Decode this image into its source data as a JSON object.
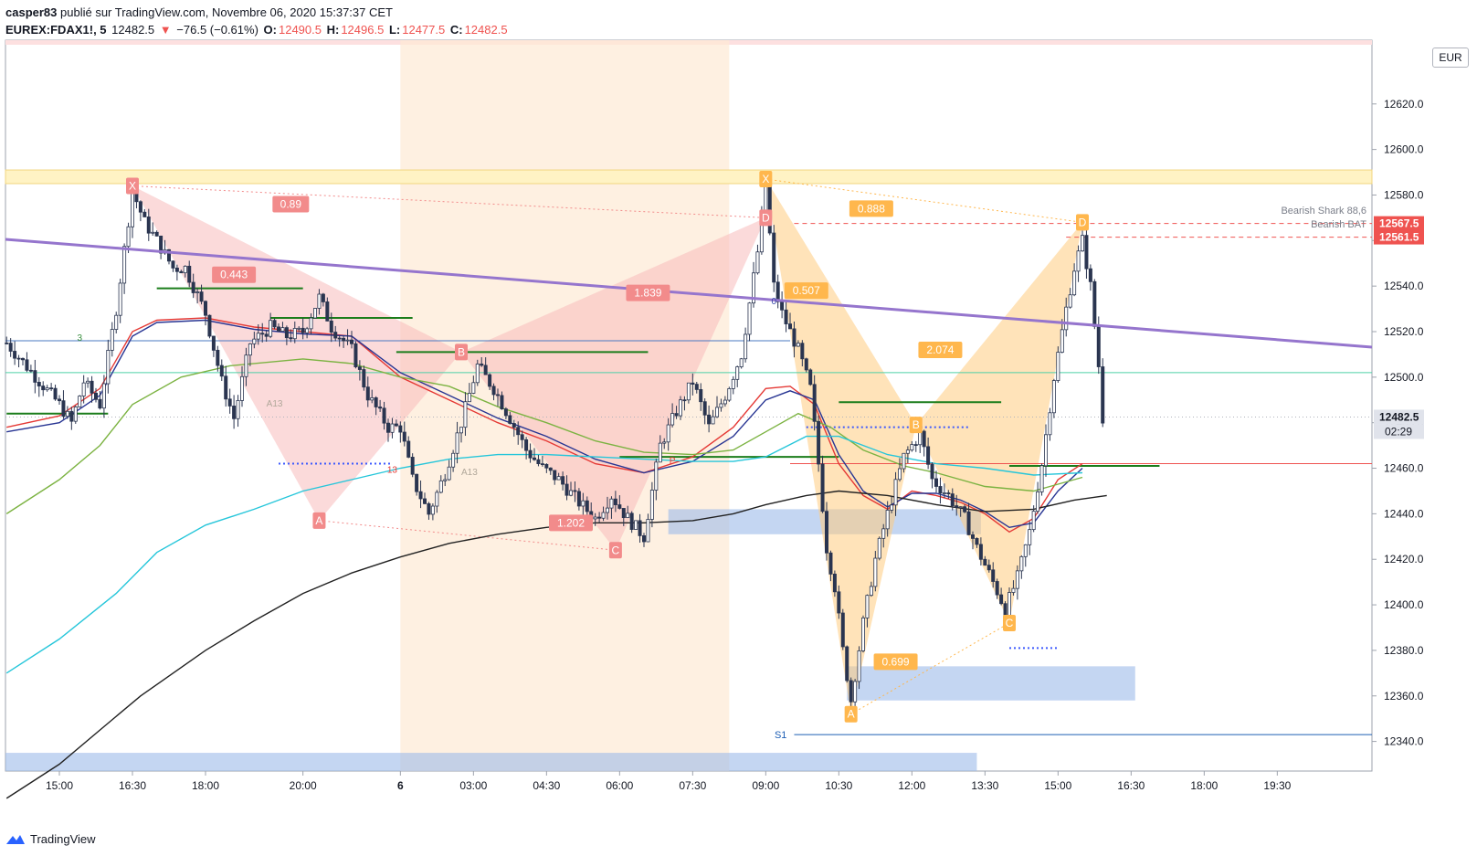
{
  "header": {
    "user": "casper83",
    "published": "publié sur TradingView.com, Novembre 06, 2020 15:37:37 CET",
    "symbol": "EUREX:FDAX1!, 5",
    "last": "12482.5",
    "change": "−76.5 (−0.61%)",
    "o_label": "O:",
    "o": "12490.5",
    "h_label": "H:",
    "h": "12496.5",
    "l_label": "L:",
    "l": "12477.5",
    "c_label": "C:",
    "c": "12482.5"
  },
  "footer": {
    "brand": "TradingView"
  },
  "currency": "EUR",
  "colors": {
    "up": "#26a69a",
    "down": "#ef5350",
    "trend": "#9575cd",
    "pattern_red": "#f8bbbb",
    "pattern_orange": "#ffcc80",
    "zone_blue": "#9cbbea",
    "zone_yellow": "#fff3c4",
    "session": "#fde9d4"
  },
  "chart_data": {
    "type": "line",
    "title": "",
    "xlabel": "",
    "ylabel": "",
    "x_ticks": [
      "15:00",
      "16:30",
      "18:00",
      "20:00",
      "6",
      "03:00",
      "04:30",
      "06:00",
      "07:30",
      "09:00",
      "10:30",
      "12:00",
      "13:30",
      "15:00",
      "16:30",
      "18:00",
      "19:30"
    ],
    "x_tick_index": [
      0,
      18,
      36,
      60,
      84,
      102,
      120,
      138,
      156,
      174,
      192,
      210,
      228,
      246,
      264,
      282,
      300
    ],
    "y_ticks": [
      12340.0,
      12360.0,
      12380.0,
      12400.0,
      12420.0,
      12440.0,
      12460.0,
      12480.0,
      12500.0,
      12520.0,
      12540.0,
      12560.0,
      12580.0,
      12600.0,
      12620.0
    ],
    "y_tick_labels": [
      "12340.0",
      "12360.0",
      "12380.0",
      "12400.0",
      "12420.0",
      "12440.0",
      "12460.0",
      "12480.0",
      "12500.0",
      "12520.0",
      "12540.0",
      "12560.0",
      "12580.0",
      "12600.0",
      "12620.0"
    ],
    "ylim": [
      12327,
      12648
    ],
    "x_range": [
      -13,
      320
    ],
    "price_path": [
      [
        -13,
        12515
      ],
      [
        0,
        12488
      ],
      [
        3,
        12480
      ],
      [
        6,
        12498
      ],
      [
        10,
        12488
      ],
      [
        14,
        12530
      ],
      [
        18,
        12582
      ],
      [
        21,
        12568
      ],
      [
        24,
        12560
      ],
      [
        28,
        12548
      ],
      [
        31,
        12548
      ],
      [
        36,
        12528
      ],
      [
        40,
        12498
      ],
      [
        43,
        12482
      ],
      [
        47,
        12515
      ],
      [
        52,
        12522
      ],
      [
        56,
        12518
      ],
      [
        60,
        12520
      ],
      [
        64,
        12535
      ],
      [
        67,
        12522
      ],
      [
        72,
        12512
      ],
      [
        76,
        12492
      ],
      [
        81,
        12478
      ],
      [
        84,
        12478
      ],
      [
        87,
        12455
      ],
      [
        91,
        12440
      ],
      [
        95,
        12458
      ],
      [
        99,
        12480
      ],
      [
        103,
        12505
      ],
      [
        107,
        12495
      ],
      [
        111,
        12482
      ],
      [
        115,
        12468
      ],
      [
        119,
        12460
      ],
      [
        123,
        12455
      ],
      [
        128,
        12445
      ],
      [
        132,
        12438
      ],
      [
        136,
        12448
      ],
      [
        140,
        12438
      ],
      [
        144,
        12430
      ],
      [
        148,
        12470
      ],
      [
        152,
        12485
      ],
      [
        156,
        12498
      ],
      [
        160,
        12478
      ],
      [
        164,
        12492
      ],
      [
        168,
        12510
      ],
      [
        172,
        12555
      ],
      [
        174,
        12585
      ],
      [
        176,
        12540
      ],
      [
        178,
        12528
      ],
      [
        182,
        12512
      ],
      [
        185,
        12495
      ],
      [
        187,
        12462
      ],
      [
        189,
        12425
      ],
      [
        191,
        12408
      ],
      [
        193,
        12380
      ],
      [
        195,
        12358
      ],
      [
        198,
        12392
      ],
      [
        201,
        12420
      ],
      [
        204,
        12440
      ],
      [
        208,
        12465
      ],
      [
        212,
        12475
      ],
      [
        215,
        12455
      ],
      [
        219,
        12448
      ],
      [
        223,
        12438
      ],
      [
        226,
        12425
      ],
      [
        230,
        12410
      ],
      [
        233,
        12398
      ],
      [
        236,
        12412
      ],
      [
        239,
        12432
      ],
      [
        242,
        12462
      ],
      [
        245,
        12500
      ],
      [
        248,
        12530
      ],
      [
        250,
        12548
      ],
      [
        252,
        12560
      ],
      [
        254,
        12540
      ],
      [
        256,
        12505
      ],
      [
        257,
        12482
      ]
    ],
    "series": [
      {
        "name": "",
        "color": "#e53935",
        "values": [
          [
            -13,
            12478
          ],
          [
            0,
            12483
          ],
          [
            10,
            12495
          ],
          [
            18,
            12520
          ],
          [
            24,
            12525
          ],
          [
            36,
            12526
          ],
          [
            48,
            12522
          ],
          [
            60,
            12520
          ],
          [
            72,
            12518
          ],
          [
            84,
            12500
          ],
          [
            96,
            12490
          ],
          [
            108,
            12480
          ],
          [
            120,
            12472
          ],
          [
            132,
            12462
          ],
          [
            144,
            12458
          ],
          [
            156,
            12465
          ],
          [
            166,
            12478
          ],
          [
            174,
            12495
          ],
          [
            180,
            12496
          ],
          [
            186,
            12488
          ],
          [
            192,
            12462
          ],
          [
            198,
            12448
          ],
          [
            204,
            12442
          ],
          [
            210,
            12450
          ],
          [
            216,
            12448
          ],
          [
            222,
            12445
          ],
          [
            228,
            12440
          ],
          [
            234,
            12432
          ],
          [
            240,
            12438
          ],
          [
            246,
            12455
          ],
          [
            252,
            12462
          ]
        ]
      },
      {
        "name": "",
        "color": "#283593",
        "values": [
          [
            -13,
            12476
          ],
          [
            0,
            12480
          ],
          [
            10,
            12492
          ],
          [
            18,
            12518
          ],
          [
            24,
            12524
          ],
          [
            36,
            12525
          ],
          [
            48,
            12521
          ],
          [
            60,
            12519
          ],
          [
            72,
            12518
          ],
          [
            84,
            12502
          ],
          [
            96,
            12492
          ],
          [
            108,
            12482
          ],
          [
            120,
            12474
          ],
          [
            132,
            12464
          ],
          [
            144,
            12458
          ],
          [
            156,
            12463
          ],
          [
            166,
            12474
          ],
          [
            174,
            12490
          ],
          [
            180,
            12494
          ],
          [
            186,
            12490
          ],
          [
            192,
            12466
          ],
          [
            198,
            12450
          ],
          [
            204,
            12443
          ],
          [
            210,
            12449
          ],
          [
            216,
            12449
          ],
          [
            222,
            12446
          ],
          [
            228,
            12441
          ],
          [
            234,
            12434
          ],
          [
            240,
            12436
          ],
          [
            246,
            12450
          ],
          [
            252,
            12460
          ]
        ]
      },
      {
        "name": "",
        "color": "#7cb342",
        "values": [
          [
            -13,
            12440
          ],
          [
            0,
            12455
          ],
          [
            10,
            12470
          ],
          [
            18,
            12488
          ],
          [
            30,
            12500
          ],
          [
            42,
            12505
          ],
          [
            60,
            12508
          ],
          [
            72,
            12506
          ],
          [
            84,
            12500
          ],
          [
            96,
            12496
          ],
          [
            108,
            12487
          ],
          [
            120,
            12480
          ],
          [
            132,
            12472
          ],
          [
            144,
            12467
          ],
          [
            156,
            12466
          ],
          [
            166,
            12468
          ],
          [
            174,
            12476
          ],
          [
            182,
            12484
          ],
          [
            190,
            12478
          ],
          [
            198,
            12468
          ],
          [
            208,
            12461
          ],
          [
            216,
            12458
          ],
          [
            228,
            12452
          ],
          [
            240,
            12450
          ],
          [
            252,
            12456
          ]
        ]
      },
      {
        "name": "",
        "color": "#26c6da",
        "values": [
          [
            -13,
            12370
          ],
          [
            0,
            12385
          ],
          [
            14,
            12405
          ],
          [
            24,
            12423
          ],
          [
            36,
            12435
          ],
          [
            48,
            12442
          ],
          [
            60,
            12450
          ],
          [
            72,
            12455
          ],
          [
            84,
            12460
          ],
          [
            96,
            12464
          ],
          [
            108,
            12466
          ],
          [
            120,
            12466
          ],
          [
            132,
            12465
          ],
          [
            144,
            12464
          ],
          [
            156,
            12463
          ],
          [
            166,
            12463
          ],
          [
            174,
            12465
          ],
          [
            184,
            12474
          ],
          [
            192,
            12474
          ],
          [
            204,
            12466
          ],
          [
            216,
            12462
          ],
          [
            228,
            12460
          ],
          [
            240,
            12457
          ],
          [
            252,
            12458
          ]
        ]
      },
      {
        "name": "",
        "color": "#212121",
        "values": [
          [
            -13,
            12315
          ],
          [
            0,
            12330
          ],
          [
            10,
            12345
          ],
          [
            20,
            12360
          ],
          [
            36,
            12380
          ],
          [
            48,
            12393
          ],
          [
            60,
            12405
          ],
          [
            72,
            12414
          ],
          [
            84,
            12421
          ],
          [
            96,
            12427
          ],
          [
            108,
            12431
          ],
          [
            120,
            12434
          ],
          [
            132,
            12436
          ],
          [
            144,
            12436
          ],
          [
            156,
            12437
          ],
          [
            166,
            12440
          ],
          [
            174,
            12444
          ],
          [
            184,
            12448
          ],
          [
            192,
            12450
          ],
          [
            204,
            12448
          ],
          [
            216,
            12444
          ],
          [
            228,
            12441
          ],
          [
            240,
            12442
          ],
          [
            250,
            12446
          ],
          [
            258,
            12448
          ]
        ]
      }
    ],
    "lines": {
      "trend": [
        [
          -13,
          12519
        ],
        [
          320,
          12512
        ]
      ],
      "resistance_1": 12567.5,
      "resistance_2": 12561.5,
      "last_price": 12482.5,
      "price_line": 12462,
      "s1": 12343
    },
    "price_labels": [
      {
        "value": 12567.5,
        "text": "12567.5",
        "color": "#ef5350"
      },
      {
        "value": 12561.5,
        "text": "12561.5",
        "color": "#ef5350"
      },
      {
        "value": 12482.5,
        "text": "12482.5",
        "color": "#e0e3eb"
      }
    ],
    "countdown": "02:29",
    "right_notes": [
      "Bearish Shark 88,6",
      "Bearish BAT"
    ],
    "s1_label": "S1",
    "ratios": [
      {
        "text": "0.89",
        "x": 57,
        "y": 12576,
        "color": "#f28b8b"
      },
      {
        "text": "0.443",
        "x": 43,
        "y": 12545,
        "color": "#f28b8b"
      },
      {
        "text": "1.839",
        "x": 145,
        "y": 12537,
        "color": "#f28b8b"
      },
      {
        "text": "1.202",
        "x": 126,
        "y": 12436,
        "color": "#f28b8b"
      },
      {
        "text": "0.888",
        "x": 200,
        "y": 12574,
        "color": "#ffb74d"
      },
      {
        "text": "0.507",
        "x": 184,
        "y": 12538,
        "color": "#ffb74d"
      },
      {
        "text": "2.074",
        "x": 217,
        "y": 12512,
        "color": "#ffb74d"
      },
      {
        "text": "0.699",
        "x": 206,
        "y": 12375,
        "color": "#ffb74d"
      }
    ],
    "pattern_points": [
      {
        "text": "X",
        "x": 18,
        "y": 12584,
        "color": "#f28b8b"
      },
      {
        "text": "A",
        "x": 64,
        "y": 12437,
        "color": "#f28b8b"
      },
      {
        "text": "B",
        "x": 99,
        "y": 12511,
        "color": "#f28b8b"
      },
      {
        "text": "C",
        "x": 137,
        "y": 12424,
        "color": "#f28b8b"
      },
      {
        "text": "D",
        "x": 174,
        "y": 12570,
        "color": "#f28b8b"
      },
      {
        "text": "X",
        "x": 174,
        "y": 12587,
        "color": "#ffb74d"
      },
      {
        "text": "A",
        "x": 195,
        "y": 12352,
        "color": "#ffb74d"
      },
      {
        "text": "B",
        "x": 211,
        "y": 12479,
        "color": "#ffb74d"
      },
      {
        "text": "C",
        "x": 234,
        "y": 12392,
        "color": "#ffb74d"
      },
      {
        "text": "D",
        "x": 252,
        "y": 12568,
        "color": "#ffb74d"
      }
    ],
    "small_labels": [
      {
        "text": "A13",
        "x": 53,
        "y": 12487,
        "color": "#b0a79a"
      },
      {
        "text": "A13",
        "x": 101,
        "y": 12457,
        "color": "#b0a79a"
      },
      {
        "text": "13",
        "x": 82,
        "y": 12458,
        "color": "#e53935"
      },
      {
        "text": "3",
        "x": 5,
        "y": 12516,
        "color": "#388e3c"
      },
      {
        "text": "P",
        "x": 151,
        "y": 12462,
        "color": "#e53935"
      },
      {
        "text": "0",
        "x": 176,
        "y": 12532,
        "color": "#3949ab"
      }
    ]
  }
}
